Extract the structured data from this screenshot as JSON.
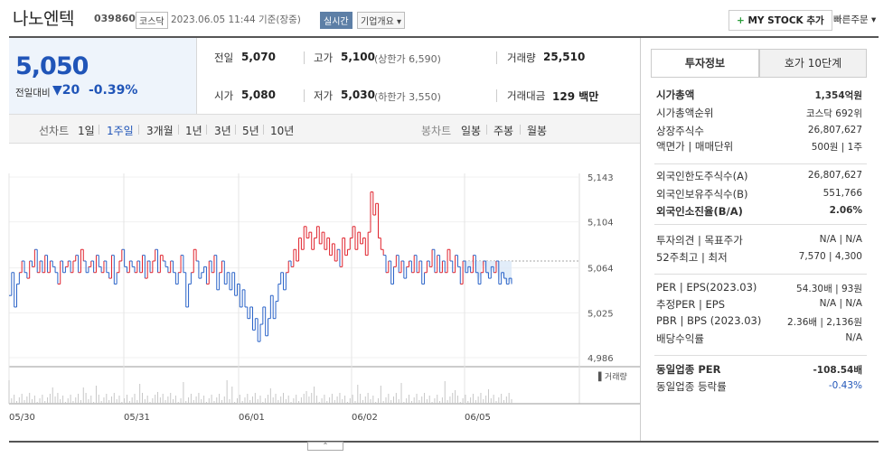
{
  "header": {
    "title": "나노엔텍",
    "code": "039860",
    "market": "코스닥",
    "basis": "2023.06.05 11:44 기준(장중)",
    "realtime_label": "실시간",
    "overview_label": "기업개요",
    "mystock_label": "MY STOCK 추가",
    "quick_order": "빠른주문"
  },
  "quote": {
    "price": "5,050",
    "vs_prev_label": "전일대비",
    "change": "20",
    "change_pct": "-0.39%",
    "prev_label": "전일",
    "prev_value": "5,070",
    "open_label": "시가",
    "open_value": "5,080",
    "high_label": "고가",
    "high_value": "5,100",
    "upper_limit": "(상한가 6,590)",
    "low_label": "저가",
    "low_value": "5,030",
    "lower_limit": "(하한가 3,550)",
    "volume_label": "거래량",
    "volume_value": "25,510",
    "amount_label": "거래대금",
    "amount_value": "129 백만"
  },
  "periods": {
    "line_label": "선차트",
    "line_items": [
      "1일",
      "1주일",
      "3개월",
      "1년",
      "3년",
      "5년",
      "10년"
    ],
    "active": "1주일",
    "candle_label": "봉차트",
    "candle_items": [
      "일봉",
      "주봉",
      "월봉"
    ]
  },
  "chart_data": {
    "type": "line",
    "y_ticks": [
      "5,143",
      "5,104",
      "5,064",
      "5,025",
      "4,986"
    ],
    "x_ticks": [
      "05/30",
      "05/31",
      "06/01",
      "06/02",
      "06/05"
    ],
    "volume_label": "거래량",
    "ylim": [
      4986,
      5143
    ],
    "series": [
      {
        "values": [
          5040,
          5060,
          5030,
          5050,
          5060,
          5070,
          5060,
          5055,
          5070,
          5065,
          5080,
          5060,
          5070,
          5060,
          5075,
          5060,
          5070,
          5065,
          5060,
          5050,
          5070,
          5060,
          5065,
          5070,
          5060,
          5070,
          5075,
          5060,
          5080,
          5070,
          5060,
          5065,
          5070,
          5060,
          5075,
          5065,
          5060,
          5070,
          5060,
          5055,
          5075,
          5050,
          5060,
          5070,
          5080,
          5065,
          5060,
          5070,
          5065,
          5060,
          5070,
          5060,
          5075,
          5055,
          5070,
          5060,
          5070,
          5080,
          5060,
          5075,
          5070,
          5065,
          5060,
          5070,
          5060,
          5050,
          5060,
          5075,
          5060,
          5030,
          5050,
          5060,
          5080,
          5070,
          5055,
          5060,
          5065,
          5050,
          5070,
          5060,
          5075,
          5045,
          5060,
          5070,
          5050,
          5060,
          5045,
          5060,
          5040,
          5050,
          5030,
          5045,
          5030,
          5020,
          5030,
          5010,
          5020,
          5000,
          5015,
          5030,
          5005,
          5020,
          5040,
          5020,
          5035,
          5050,
          5060,
          5045,
          5060,
          5070,
          5065,
          5080,
          5070,
          5090,
          5080,
          5100,
          5090,
          5095,
          5080,
          5090,
          5100,
          5085,
          5095,
          5080,
          5090,
          5075,
          5085,
          5070,
          5080,
          5065,
          5090,
          5075,
          5080,
          5090,
          5100,
          5080,
          5095,
          5085,
          5090,
          5075,
          5095,
          5130,
          5110,
          5120,
          5090,
          5080,
          5075,
          5060,
          5070,
          5050,
          5065,
          5075,
          5060,
          5070,
          5055,
          5065,
          5070,
          5060,
          5075,
          5060,
          5070,
          5050,
          5060,
          5070,
          5065,
          5080,
          5060,
          5075,
          5060,
          5070,
          5060,
          5080,
          5070,
          5060,
          5075,
          5065,
          5050,
          5070,
          5060,
          5065,
          5060,
          5075,
          5060,
          5050,
          5060,
          5070,
          5060,
          5055,
          5065,
          5060,
          5070,
          5050,
          5060,
          5055,
          5050,
          5055,
          5050
        ]
      }
    ]
  },
  "info": {
    "tab_active": "투자정보",
    "tab_other": "호가 10단계",
    "rows": [
      {
        "label": "시가총액",
        "value": "1,354억원"
      },
      {
        "label": "시가총액순위",
        "value": "코스닥 692위"
      },
      {
        "label": "상장주식수",
        "value": "26,807,627"
      },
      {
        "label": "액면가 | 매매단위",
        "value": "500원 | 1주"
      },
      {
        "label": "외국인한도주식수(A)",
        "value": "26,807,627"
      },
      {
        "label": "외국인보유주식수(B)",
        "value": "551,766"
      },
      {
        "label": "외국인소진율(B/A)",
        "value": "2.06%"
      },
      {
        "label": "투자의견 | 목표주가",
        "value": "N/A | N/A"
      },
      {
        "label": "52주최고 | 최저",
        "value": "7,570 | 4,300"
      },
      {
        "label": "PER | EPS(2023.03)",
        "value": "54.30배 | 93원"
      },
      {
        "label": "추정PER | EPS",
        "value": "N/A | N/A"
      },
      {
        "label": "PBR | BPS (2023.03)",
        "value": "2.36배 | 2,136원"
      },
      {
        "label": "배당수익률",
        "value": "N/A"
      },
      {
        "label": "동일업종 PER",
        "value": "-108.54배"
      },
      {
        "label": "동일업종 등락률",
        "value": "-0.43%"
      }
    ]
  }
}
